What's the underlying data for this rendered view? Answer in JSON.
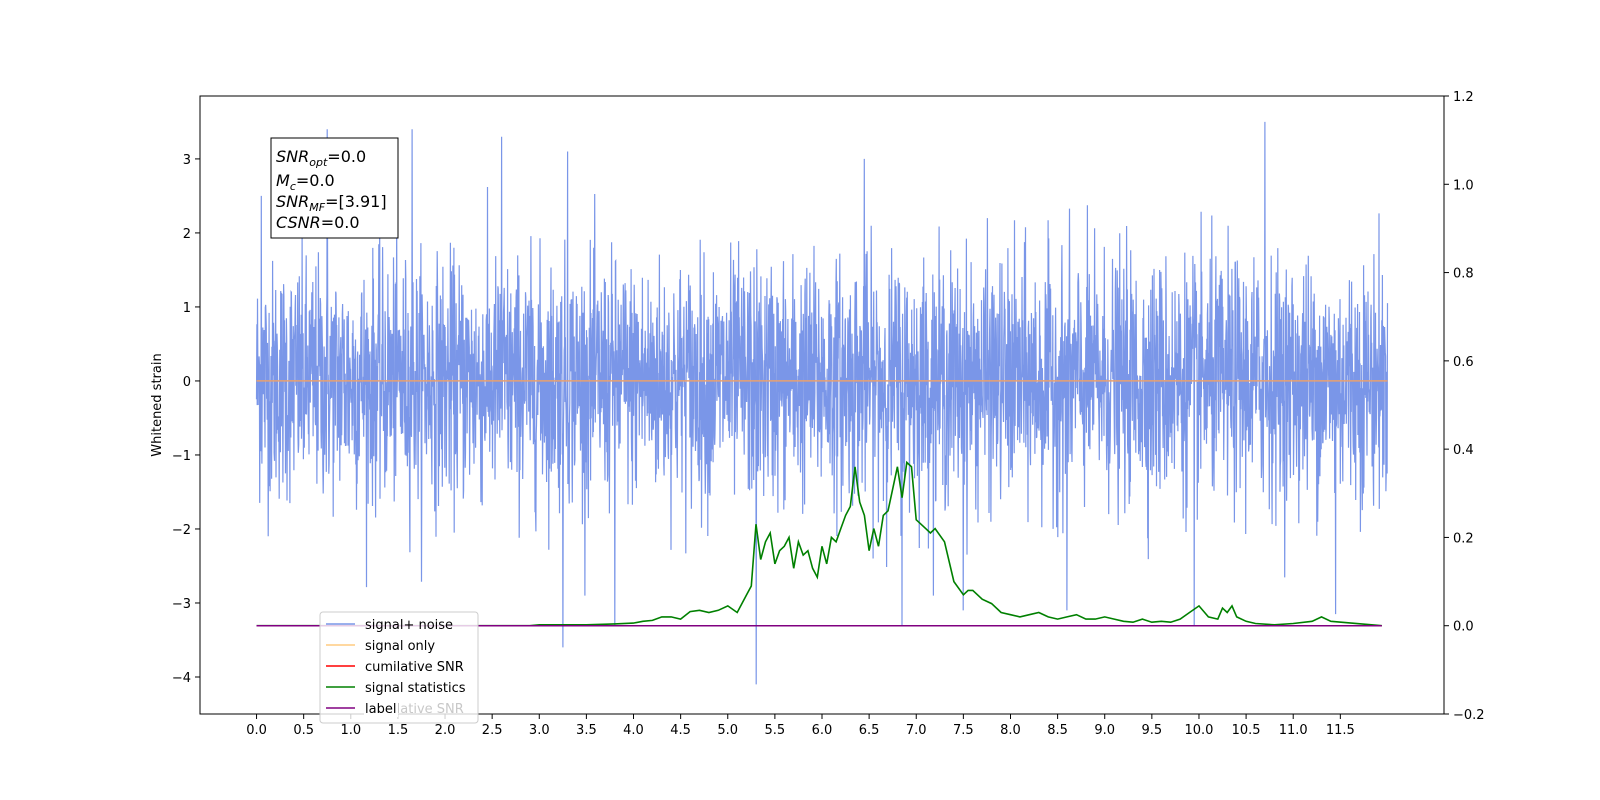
{
  "chart_data": {
    "type": "line",
    "ylabel": "Whitened strain",
    "xlabel": "",
    "xlim": [
      -0.6,
      12.6
    ],
    "ylim": [
      -4.5,
      3.85
    ],
    "y2lim": [
      -0.2,
      1.2
    ],
    "grid": false,
    "x_ticks": [
      "0.0",
      "0.5",
      "1.0",
      "1.5",
      "2.0",
      "2.5",
      "3.0",
      "3.5",
      "4.0",
      "4.5",
      "5.0",
      "5.5",
      "6.0",
      "6.5",
      "7.0",
      "7.5",
      "8.0",
      "8.5",
      "9.0",
      "9.5",
      "10.0",
      "10.5",
      "11.0",
      "11.5"
    ],
    "y_ticks": [
      "3",
      "2",
      "1",
      "0",
      "−1",
      "−2",
      "−3",
      "−4"
    ],
    "y2_ticks": [
      "1.2",
      "1.0",
      "0.8",
      "0.6",
      "0.4",
      "0.2",
      "0.0",
      "−0.2"
    ],
    "info_box": [
      {
        "math": "SNR",
        "sub": "opt",
        "rest": "=0.0"
      },
      {
        "math": "M",
        "sub": "c",
        "rest": "=0.0"
      },
      {
        "math": "SNR",
        "sub": "MF",
        "rest": "=[3.91]"
      },
      {
        "math": "CSNR",
        "sub": "",
        "rest": "=0.0"
      }
    ],
    "legend": {
      "placement": "lower-left",
      "entries": [
        {
          "label": "signal+ noise",
          "color": "#7a96e8"
        },
        {
          "label": "signal only",
          "color": "#ffcc80"
        },
        {
          "label": "cumilative SNR",
          "color": "#ff0000"
        },
        {
          "label": "signal statistics",
          "color": "#008000"
        },
        {
          "label": "label",
          "color": "#800080"
        }
      ],
      "ghost_text": "cumilative SNR"
    },
    "series": [
      {
        "name": "signal+ noise",
        "axis": "left",
        "color": "#7a96e8",
        "x_range": [
          0.0,
          12.0
        ],
        "y_band": [
          -1.5,
          1.5
        ],
        "spikes": [
          {
            "x": 0.05,
            "y": 2.5
          },
          {
            "x": 0.75,
            "y": 3.4
          },
          {
            "x": 1.65,
            "y": 3.4
          },
          {
            "x": 2.6,
            "y": 3.3
          },
          {
            "x": 3.3,
            "y": 3.1
          },
          {
            "x": 6.45,
            "y": 3.0
          },
          {
            "x": 10.7,
            "y": 3.5
          },
          {
            "x": 3.25,
            "y": -3.6
          },
          {
            "x": 5.3,
            "y": -4.1
          },
          {
            "x": 3.8,
            "y": -3.3
          },
          {
            "x": 9.95,
            "y": -3.3
          },
          {
            "x": 11.45,
            "y": -3.15
          },
          {
            "x": 6.85,
            "y": -3.3
          },
          {
            "x": 7.5,
            "y": -3.1
          },
          {
            "x": 8.6,
            "y": -3.1
          }
        ]
      },
      {
        "name": "signal only",
        "axis": "left",
        "color": "#e8a070",
        "x": [
          0.0,
          12.0
        ],
        "y": [
          0.0,
          0.0
        ]
      },
      {
        "name": "cumilative SNR",
        "axis": "right",
        "color": "#ff0000",
        "x": [
          0.0,
          11.94
        ],
        "y": [
          0.0,
          0.0
        ]
      },
      {
        "name": "signal statistics",
        "axis": "right",
        "color": "#008000",
        "x": [
          0.0,
          2.9,
          3.0,
          3.5,
          3.8,
          4.0,
          4.1,
          4.2,
          4.3,
          4.4,
          4.5,
          4.6,
          4.7,
          4.8,
          4.9,
          5.0,
          5.1,
          5.15,
          5.2,
          5.25,
          5.3,
          5.35,
          5.4,
          5.45,
          5.5,
          5.55,
          5.6,
          5.65,
          5.7,
          5.75,
          5.8,
          5.85,
          5.9,
          5.95,
          6.0,
          6.05,
          6.1,
          6.15,
          6.2,
          6.25,
          6.3,
          6.35,
          6.4,
          6.45,
          6.5,
          6.55,
          6.6,
          6.65,
          6.7,
          6.75,
          6.8,
          6.85,
          6.9,
          6.95,
          7.0,
          7.05,
          7.1,
          7.15,
          7.2,
          7.3,
          7.4,
          7.5,
          7.55,
          7.6,
          7.7,
          7.8,
          7.9,
          8.0,
          8.1,
          8.2,
          8.3,
          8.4,
          8.5,
          8.6,
          8.7,
          8.8,
          8.9,
          9.0,
          9.1,
          9.2,
          9.3,
          9.4,
          9.5,
          9.6,
          9.7,
          9.8,
          9.9,
          10.0,
          10.1,
          10.2,
          10.25,
          10.3,
          10.35,
          10.4,
          10.5,
          10.6,
          10.8,
          11.0,
          11.2,
          11.3,
          11.4,
          11.94
        ],
        "y": [
          0.0,
          0.0,
          0.002,
          0.002,
          0.004,
          0.006,
          0.01,
          0.012,
          0.02,
          0.02,
          0.015,
          0.032,
          0.035,
          0.03,
          0.035,
          0.045,
          0.03,
          0.05,
          0.07,
          0.09,
          0.23,
          0.15,
          0.19,
          0.21,
          0.14,
          0.17,
          0.18,
          0.2,
          0.13,
          0.19,
          0.16,
          0.17,
          0.13,
          0.11,
          0.18,
          0.14,
          0.2,
          0.19,
          0.22,
          0.25,
          0.27,
          0.36,
          0.28,
          0.25,
          0.17,
          0.22,
          0.18,
          0.25,
          0.26,
          0.31,
          0.36,
          0.29,
          0.37,
          0.36,
          0.24,
          0.23,
          0.22,
          0.21,
          0.22,
          0.19,
          0.1,
          0.07,
          0.08,
          0.08,
          0.06,
          0.05,
          0.03,
          0.025,
          0.02,
          0.025,
          0.03,
          0.02,
          0.015,
          0.02,
          0.025,
          0.015,
          0.015,
          0.02,
          0.015,
          0.01,
          0.008,
          0.015,
          0.008,
          0.01,
          0.008,
          0.015,
          0.03,
          0.045,
          0.02,
          0.015,
          0.04,
          0.03,
          0.045,
          0.02,
          0.01,
          0.005,
          0.002,
          0.005,
          0.01,
          0.02,
          0.01,
          0.0
        ]
      },
      {
        "name": "label",
        "axis": "right",
        "color": "#800080",
        "x": [
          0.0,
          11.94
        ],
        "y": [
          0.0,
          0.0
        ]
      }
    ]
  }
}
